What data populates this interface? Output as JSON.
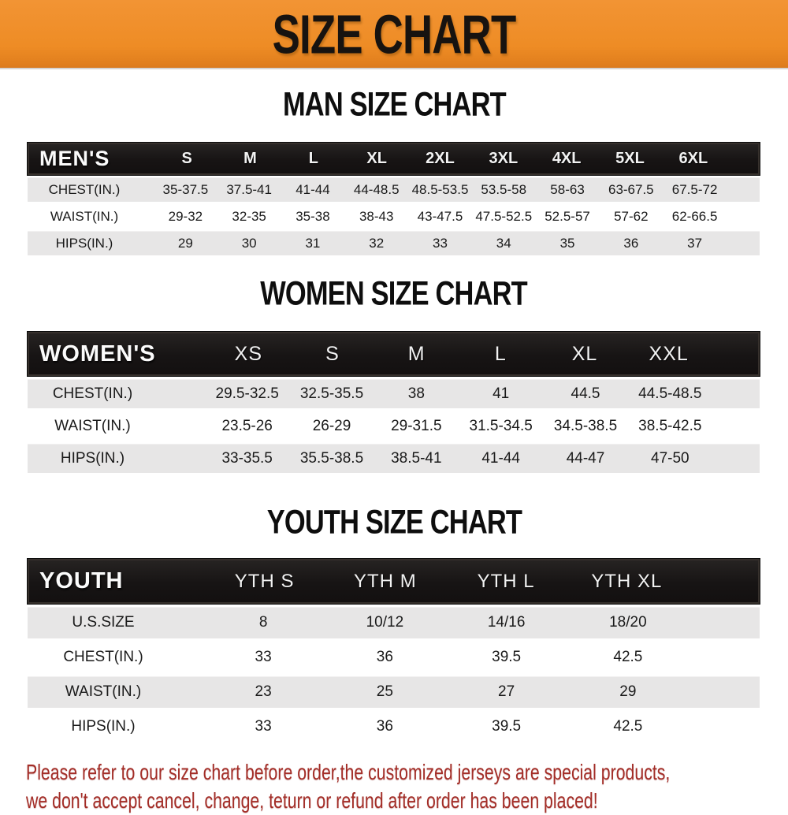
{
  "banner": {
    "title": "SIZE CHART",
    "bg_color": "#ee8c25",
    "text_color": "#171310"
  },
  "colors": {
    "table_header_bg": "#171414",
    "table_row_gray": "#e7e6e6",
    "table_row_white": "#ffffff",
    "footer_text": "#a32d27"
  },
  "sections": [
    {
      "heading": "MAN SIZE CHART",
      "header": {
        "label": "MEN'S",
        "sizes": [
          "S",
          "M",
          "L",
          "XL",
          "2XL",
          "3XL",
          "4XL",
          "5XL",
          "6XL"
        ]
      },
      "rows": [
        {
          "label": "CHEST(IN.)",
          "values": [
            "35-37.5",
            "37.5-41",
            "41-44",
            "44-48.5",
            "48.5-53.5",
            "53.5-58",
            "58-63",
            "63-67.5",
            "67.5-72"
          ]
        },
        {
          "label": "WAIST(IN.)",
          "values": [
            "29-32",
            "32-35",
            "35-38",
            "38-43",
            "43-47.5",
            "47.5-52.5",
            "52.5-57",
            "57-62",
            "62-66.5"
          ]
        },
        {
          "label": "HIPS(IN.)",
          "values": [
            "29",
            "30",
            "31",
            "32",
            "33",
            "34",
            "35",
            "36",
            "37"
          ]
        }
      ]
    },
    {
      "heading": "WOMEN SIZE CHART",
      "header": {
        "label": "WOMEN'S",
        "sizes": [
          "XS",
          "S",
          "M",
          "L",
          "XL",
          "XXL"
        ]
      },
      "rows": [
        {
          "label": "CHEST(IN.)",
          "values": [
            "29.5-32.5",
            "32.5-35.5",
            "38",
            "41",
            "44.5",
            "44.5-48.5"
          ]
        },
        {
          "label": "WAIST(IN.)",
          "values": [
            "23.5-26",
            "26-29",
            "29-31.5",
            "31.5-34.5",
            "34.5-38.5",
            "38.5-42.5"
          ]
        },
        {
          "label": "HIPS(IN.)",
          "values": [
            "33-35.5",
            "35.5-38.5",
            "38.5-41",
            "41-44",
            "44-47",
            "47-50"
          ]
        }
      ]
    },
    {
      "heading": "YOUTH SIZE CHART",
      "header": {
        "label": "YOUTH",
        "sizes": [
          "YTH S",
          "YTH M",
          "YTH L",
          "YTH XL"
        ]
      },
      "rows": [
        {
          "label": "U.S.SIZE",
          "values": [
            "8",
            "10/12",
            "14/16",
            "18/20"
          ]
        },
        {
          "label": "CHEST(IN.)",
          "values": [
            "33",
            "36",
            "39.5",
            "42.5"
          ]
        },
        {
          "label": "WAIST(IN.)",
          "values": [
            "23",
            "25",
            "27",
            "29"
          ]
        },
        {
          "label": "HIPS(IN.)",
          "values": [
            "33",
            "36",
            "39.5",
            "42.5"
          ]
        }
      ]
    }
  ],
  "footer": {
    "line1": "Please refer to our size chart before order,the customized jerseys are special products,",
    "line2": "we don't accept cancel, change, teturn or refund after order has been placed!"
  }
}
